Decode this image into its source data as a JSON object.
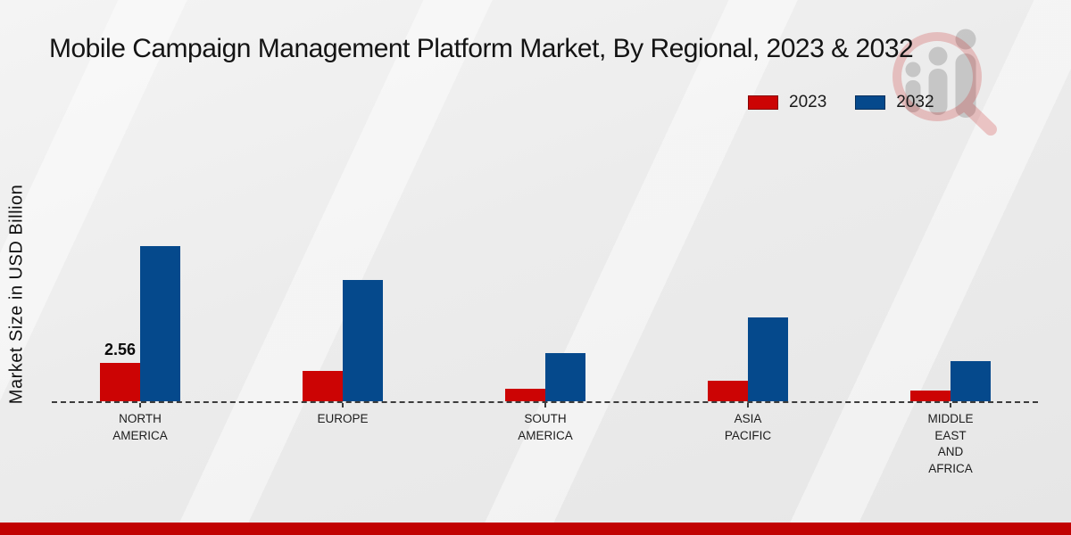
{
  "title": "Mobile Campaign Management Platform Market, By Regional, 2023 & 2032",
  "ylabel": "Market Size in USD Billion",
  "legend": [
    {
      "label": "2023",
      "color": "#cc0404"
    },
    {
      "label": "2032",
      "color": "#05498c"
    }
  ],
  "colors": {
    "bar_2023": "#cc0404",
    "bar_2032": "#05498c",
    "footer_strip": "#c10202",
    "axis_dash": "#3c3c3c",
    "background": "#ececec"
  },
  "watermark": {
    "name": "magnifier-bar-chart-logo"
  },
  "chart_data": {
    "type": "bar",
    "categories": [
      "NORTH AMERICA",
      "EUROPE",
      "SOUTH AMERICA",
      "ASIA PACIFIC",
      "MIDDLE EAST AND AFRICA"
    ],
    "series": [
      {
        "name": "2023",
        "color": "#cc0404",
        "values": [
          2.56,
          2.0,
          0.83,
          1.35,
          0.7
        ]
      },
      {
        "name": "2032",
        "color": "#05498c",
        "values": [
          10.25,
          8.0,
          3.2,
          5.55,
          2.65
        ]
      }
    ],
    "annotations": [
      {
        "series_index": 0,
        "category_index": 0,
        "text": "2.56"
      }
    ],
    "title": "Mobile Campaign Management Platform Market, By Regional, 2023 & 2032",
    "xlabel": "",
    "ylabel": "Market Size in USD Billion",
    "ylim": [
      0,
      12
    ],
    "grid": false,
    "legend_position": "top-right",
    "baseline_style": "dashed"
  }
}
